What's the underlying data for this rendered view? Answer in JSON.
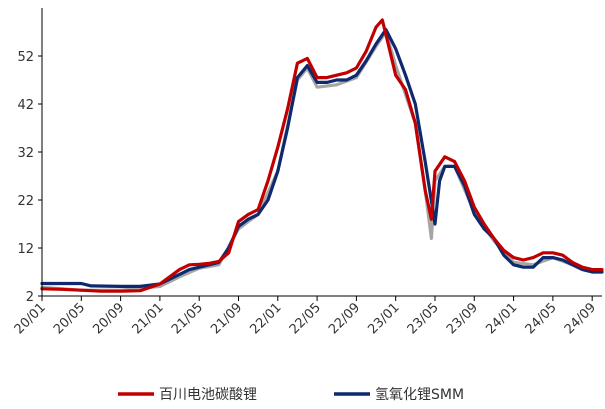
{
  "chart_data": {
    "type": "line",
    "title": "",
    "xlabel": "",
    "ylabel": "",
    "ylim": [
      2,
      62
    ],
    "yticks": [
      2,
      12,
      22,
      32,
      42,
      52
    ],
    "x_range": [
      "2020-01",
      "2024-10"
    ],
    "x_tick_labels": [
      "20/01",
      "20/05",
      "20/09",
      "21/01",
      "21/05",
      "21/09",
      "22/01",
      "22/05",
      "22/09",
      "23/01",
      "23/05",
      "23/09",
      "24/01",
      "24/05",
      "24/09"
    ],
    "legend_position": "bottom",
    "grid": false,
    "series": [
      {
        "name": "百川电池碳酸锂",
        "color": "#c00000",
        "points": [
          [
            "2020-01",
            3.5
          ],
          [
            "2020-03",
            3.4
          ],
          [
            "2020-05",
            3.2
          ],
          [
            "2020-07",
            3.0
          ],
          [
            "2020-09",
            3.0
          ],
          [
            "2020-11",
            3.1
          ],
          [
            "2021-01",
            4.5
          ],
          [
            "2021-02",
            6.0
          ],
          [
            "2021-03",
            7.5
          ],
          [
            "2021-04",
            8.5
          ],
          [
            "2021-05",
            8.6
          ],
          [
            "2021-06",
            8.8
          ],
          [
            "2021-07",
            9.2
          ],
          [
            "2021-08",
            11.0
          ],
          [
            "2021-09",
            17.5
          ],
          [
            "2021-10",
            19.0
          ],
          [
            "2021-11",
            20.0
          ],
          [
            "2021-12",
            26.0
          ],
          [
            "2022-01",
            33.0
          ],
          [
            "2022-02",
            41.0
          ],
          [
            "2022-03",
            50.5
          ],
          [
            "2022-04",
            51.5
          ],
          [
            "2022-05",
            47.5
          ],
          [
            "2022-06",
            47.5
          ],
          [
            "2022-07",
            48.0
          ],
          [
            "2022-08",
            48.5
          ],
          [
            "2022-09",
            49.5
          ],
          [
            "2022-10",
            53.0
          ],
          [
            "2022-11",
            58.0
          ],
          [
            "2022-11-20",
            59.5
          ],
          [
            "2022-12",
            56.5
          ],
          [
            "2023-01",
            48.0
          ],
          [
            "2023-02",
            45.0
          ],
          [
            "2023-03",
            38.0
          ],
          [
            "2023-04",
            24.0
          ],
          [
            "2023-04-20",
            18.0
          ],
          [
            "2023-05",
            28.0
          ],
          [
            "2023-06",
            31.0
          ],
          [
            "2023-07",
            30.0
          ],
          [
            "2023-08",
            26.0
          ],
          [
            "2023-09",
            20.5
          ],
          [
            "2023-10",
            17.0
          ],
          [
            "2023-11",
            14.0
          ],
          [
            "2023-12",
            11.5
          ],
          [
            "2024-01",
            10.0
          ],
          [
            "2024-02",
            9.5
          ],
          [
            "2024-03",
            10.0
          ],
          [
            "2024-04",
            11.0
          ],
          [
            "2024-05",
            11.0
          ],
          [
            "2024-06",
            10.5
          ],
          [
            "2024-07",
            9.0
          ],
          [
            "2024-08",
            8.0
          ],
          [
            "2024-09",
            7.5
          ],
          [
            "2024-10",
            7.5
          ]
        ]
      },
      {
        "name": "氢氧化锂SMM",
        "color": "#0d2a6e",
        "points": [
          [
            "2020-01",
            4.6
          ],
          [
            "2020-03",
            4.6
          ],
          [
            "2020-05",
            4.6
          ],
          [
            "2020-06",
            4.1
          ],
          [
            "2020-09",
            4.0
          ],
          [
            "2020-11",
            4.0
          ],
          [
            "2021-01",
            4.5
          ],
          [
            "2021-02",
            5.5
          ],
          [
            "2021-03",
            6.5
          ],
          [
            "2021-04",
            7.5
          ],
          [
            "2021-05",
            8.0
          ],
          [
            "2021-06",
            8.5
          ],
          [
            "2021-07",
            9.0
          ],
          [
            "2021-08",
            12.0
          ],
          [
            "2021-09",
            16.5
          ],
          [
            "2021-10",
            18.0
          ],
          [
            "2021-11",
            19.0
          ],
          [
            "2021-12",
            22.0
          ],
          [
            "2022-01",
            28.0
          ],
          [
            "2022-02",
            37.0
          ],
          [
            "2022-03",
            47.5
          ],
          [
            "2022-04",
            50.0
          ],
          [
            "2022-05",
            46.5
          ],
          [
            "2022-06",
            46.5
          ],
          [
            "2022-07",
            47.0
          ],
          [
            "2022-08",
            47.0
          ],
          [
            "2022-09",
            48.0
          ],
          [
            "2022-10",
            51.0
          ],
          [
            "2022-11",
            54.5
          ],
          [
            "2022-12",
            57.5
          ],
          [
            "2023-01",
            53.5
          ],
          [
            "2023-02",
            48.0
          ],
          [
            "2023-03",
            42.0
          ],
          [
            "2023-04",
            30.0
          ],
          [
            "2023-05",
            17.0
          ],
          [
            "2023-05-15",
            26.0
          ],
          [
            "2023-06",
            29.0
          ],
          [
            "2023-07",
            29.0
          ],
          [
            "2023-08",
            25.0
          ],
          [
            "2023-09",
            19.0
          ],
          [
            "2023-10",
            16.0
          ],
          [
            "2023-11",
            14.0
          ],
          [
            "2023-12",
            10.5
          ],
          [
            "2024-01",
            8.5
          ],
          [
            "2024-02",
            8.0
          ],
          [
            "2024-03",
            8.0
          ],
          [
            "2024-04",
            10.0
          ],
          [
            "2024-05",
            10.0
          ],
          [
            "2024-06",
            9.5
          ],
          [
            "2024-07",
            8.5
          ],
          [
            "2024-08",
            7.5
          ],
          [
            "2024-09",
            7.0
          ],
          [
            "2024-10",
            7.0
          ]
        ]
      },
      {
        "name": "",
        "color": "#a6a6a6",
        "points": [
          [
            "2020-01",
            3.8
          ],
          [
            "2020-05",
            3.2
          ],
          [
            "2020-09",
            3.2
          ],
          [
            "2021-01",
            4.0
          ],
          [
            "2021-03",
            6.0
          ],
          [
            "2021-05",
            7.8
          ],
          [
            "2021-07",
            8.5
          ],
          [
            "2021-09",
            16.0
          ],
          [
            "2021-11",
            19.0
          ],
          [
            "2022-01",
            28.0
          ],
          [
            "2022-03",
            47.0
          ],
          [
            "2022-04",
            49.5
          ],
          [
            "2022-05",
            45.5
          ],
          [
            "2022-07",
            46.0
          ],
          [
            "2022-09",
            47.5
          ],
          [
            "2022-11",
            54.0
          ],
          [
            "2022-12",
            57.0
          ],
          [
            "2023-01",
            50.0
          ],
          [
            "2023-03",
            38.0
          ],
          [
            "2023-04",
            24.0
          ],
          [
            "2023-04-20",
            14.0
          ],
          [
            "2023-05",
            26.0
          ],
          [
            "2023-06",
            29.0
          ],
          [
            "2023-07",
            29.0
          ],
          [
            "2023-09",
            19.5
          ],
          [
            "2023-11",
            13.5
          ],
          [
            "2024-01",
            9.0
          ],
          [
            "2024-03",
            8.5
          ],
          [
            "2024-05",
            10.0
          ],
          [
            "2024-07",
            8.5
          ],
          [
            "2024-09",
            7.0
          ],
          [
            "2024-10",
            7.0
          ]
        ]
      }
    ],
    "legend": [
      {
        "label": "百川电池碳酸锂",
        "color": "#c00000"
      },
      {
        "label": "氢氧化锂SMM",
        "color": "#0d2a6e"
      }
    ]
  }
}
